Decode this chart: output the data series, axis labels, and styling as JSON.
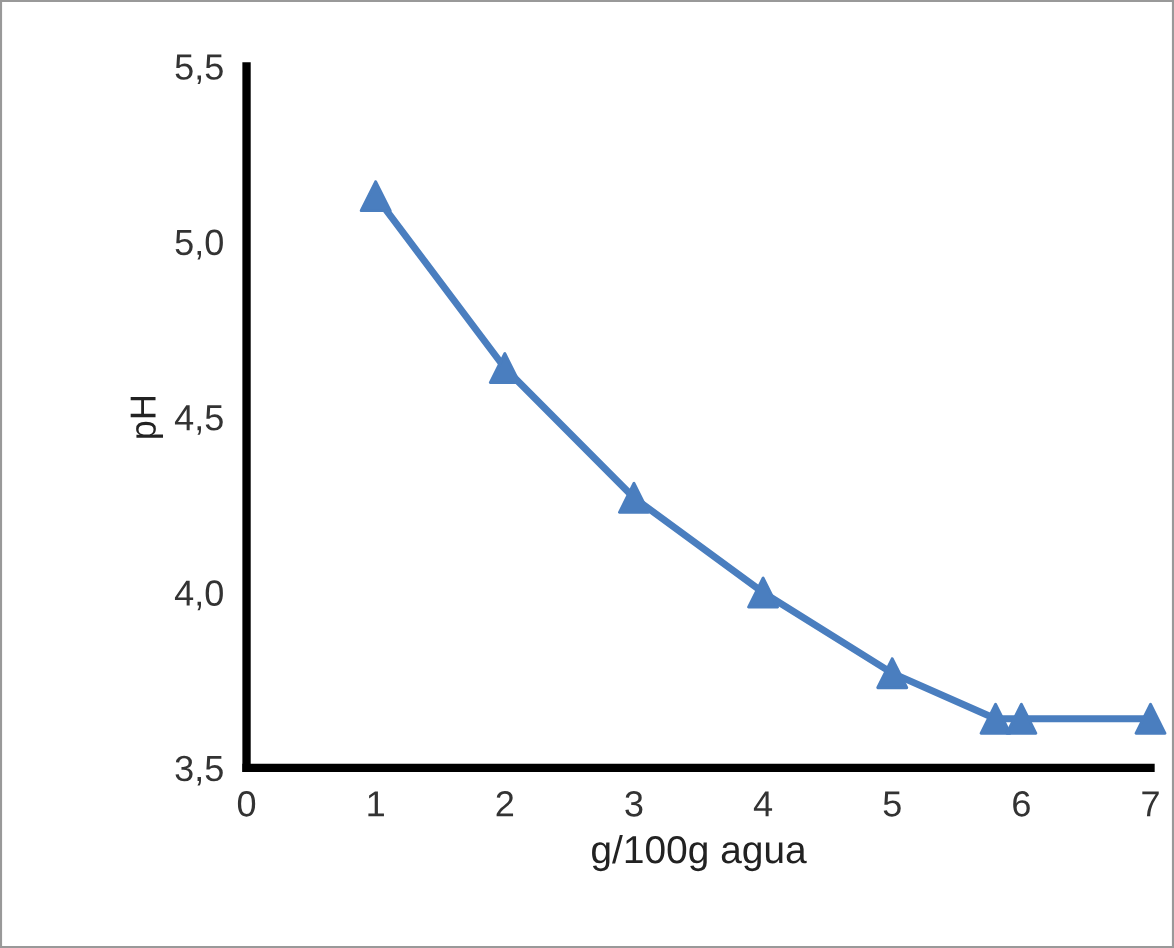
{
  "chart_data": {
    "type": "line",
    "xlabel": "g/100g agua",
    "ylabel": "pH",
    "series": [
      {
        "color": "#4a7ebf",
        "x": [
          1,
          2,
          3,
          4,
          5,
          5.8,
          6,
          7
        ],
        "values": [
          5.13,
          4.64,
          4.27,
          4.0,
          3.77,
          3.64,
          3.64,
          3.64
        ]
      }
    ],
    "xlim": [
      0,
      7
    ],
    "xticks": [
      0,
      1,
      2,
      3,
      4,
      5,
      6,
      7
    ],
    "ylim": [
      3.5,
      5.5
    ],
    "yticks": [
      {
        "value": 3.5,
        "label": "3,5"
      },
      {
        "value": 4.0,
        "label": "4,0"
      },
      {
        "value": 4.5,
        "label": "4,5"
      },
      {
        "value": 5.0,
        "label": "5,0"
      },
      {
        "value": 5.5,
        "label": "5,5"
      }
    ],
    "marker": "triangle",
    "line_style": "solid"
  }
}
